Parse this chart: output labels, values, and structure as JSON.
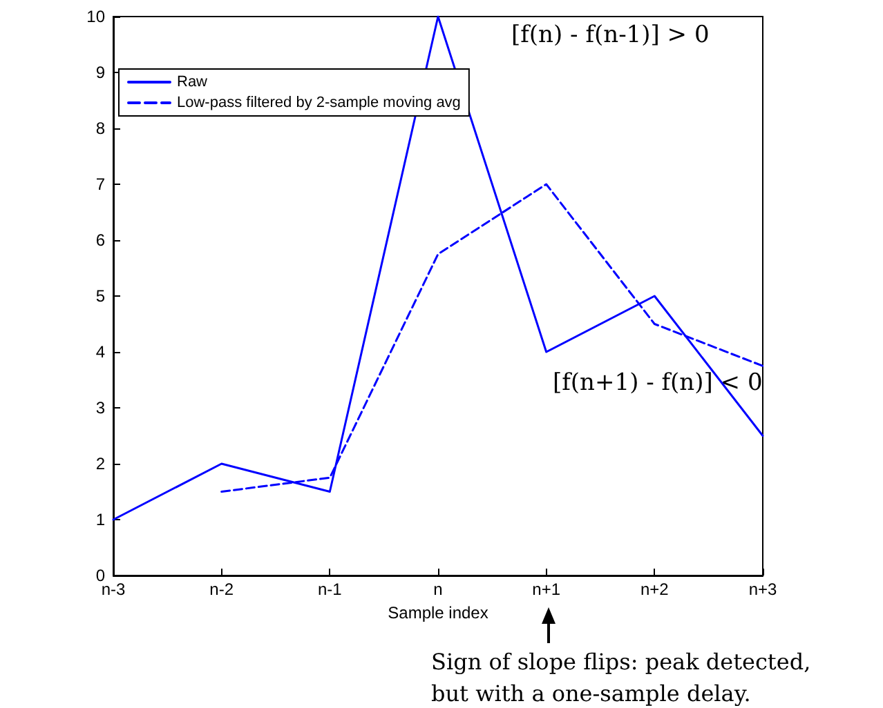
{
  "chart_data": {
    "type": "line",
    "xlabel": "Sample index",
    "categories": [
      "n-3",
      "n-2",
      "n-1",
      "n",
      "n+1",
      "n+2",
      "n+3"
    ],
    "series": [
      {
        "name": "Raw",
        "color": "#0000ff",
        "line_style": "solid",
        "values": [
          1,
          2,
          1.5,
          10,
          4,
          5,
          2.5
        ]
      },
      {
        "name": "Low-pass filtered by 2-sample moving avg",
        "color": "#0000ff",
        "line_style": "dashed",
        "values": [
          null,
          1.5,
          1.75,
          5.75,
          7,
          4.5,
          3.75
        ]
      }
    ],
    "ylim": [
      0,
      10
    ],
    "yticks": [
      0,
      1,
      2,
      3,
      4,
      5,
      6,
      7,
      8,
      9,
      10
    ],
    "grid": false,
    "legend": "top left",
    "marker": "none",
    "annotations": [
      "[f(n) - f(n-1)] > 0",
      "[f(n+1) - f(n)] < 0",
      "Sign of slope flips: peak detected,\nbut with a one-sample delay."
    ]
  }
}
